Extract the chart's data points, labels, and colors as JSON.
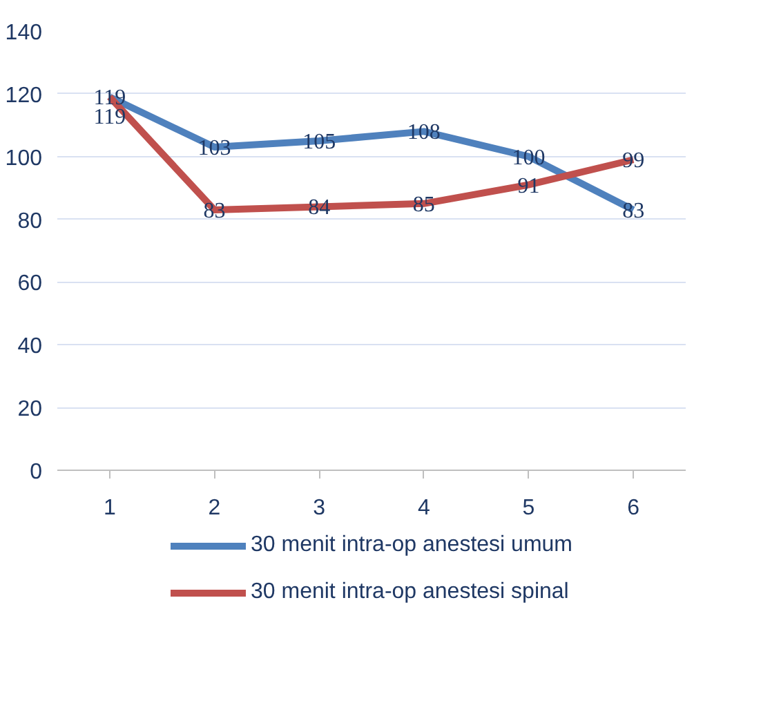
{
  "chart_data": {
    "type": "line",
    "categories": [
      "1",
      "2",
      "3",
      "4",
      "5",
      "6"
    ],
    "series": [
      {
        "name": "30 menit intra-op anestesi umum",
        "color": "#4f81bd",
        "values": [
          119,
          103,
          105,
          108,
          100,
          83
        ]
      },
      {
        "name": "30 menit intra-op anestesi spinal",
        "color": "#c0504d",
        "values": [
          119,
          83,
          84,
          85,
          91,
          99
        ]
      }
    ],
    "ylim": [
      0,
      140
    ],
    "yticks": [
      0,
      20,
      40,
      60,
      80,
      100,
      120,
      140
    ],
    "grid": "y",
    "legend": "bottom",
    "data_labels": true,
    "marker": "none",
    "line_style": "solid"
  }
}
